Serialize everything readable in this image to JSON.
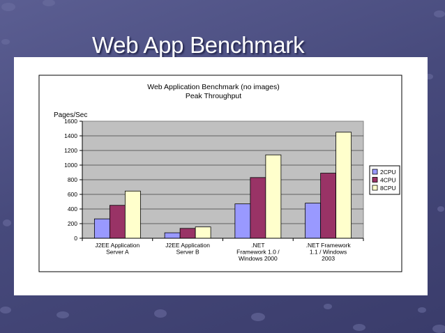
{
  "slide": {
    "title": "Web App Benchmark"
  },
  "colors": {
    "background": "#4b4e82",
    "plot_area": "#c0c0c0",
    "series": [
      "#9999ff",
      "#993366",
      "#ffffcc"
    ]
  },
  "chart_data": {
    "type": "bar",
    "title": "Web Application Benchmark (no images)",
    "subtitle": "Peak Throughput",
    "ylabel": "Pages/Sec",
    "xlabel": "",
    "ylim": [
      0,
      1600
    ],
    "yticks": [
      "1600",
      "1400",
      "1200",
      "1000",
      "800",
      "600",
      "400",
      "200",
      "0"
    ],
    "grid": true,
    "legend_position": "right",
    "categories": [
      [
        "J2EE Application",
        "Server A"
      ],
      [
        "J2EE Application",
        "Server B"
      ],
      [
        ".NET",
        "Framework 1.0 /",
        "Windows 2000"
      ],
      [
        ".NET Framework",
        "1.1 / Windows",
        "2003"
      ]
    ],
    "series": [
      {
        "name": "2CPU",
        "values": [
          265,
          75,
          470,
          480
        ]
      },
      {
        "name": "4CPU",
        "values": [
          450,
          135,
          830,
          890
        ]
      },
      {
        "name": "8CPU",
        "values": [
          645,
          155,
          1140,
          1450
        ]
      }
    ]
  }
}
